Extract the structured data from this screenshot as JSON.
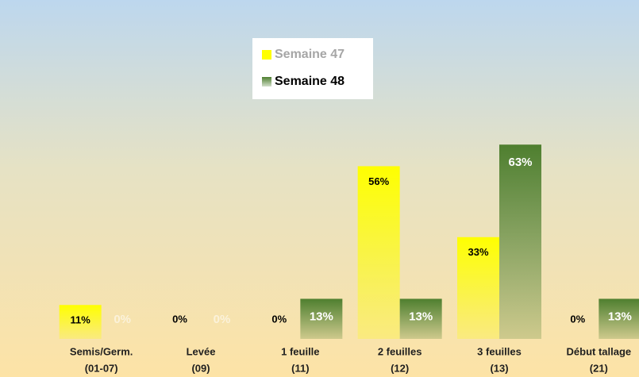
{
  "chart_data": {
    "type": "bar",
    "categories": [
      [
        "Semis/Germ.",
        "(01-07)"
      ],
      [
        "Levée",
        "(09)"
      ],
      [
        "1 feuille",
        "(11)"
      ],
      [
        "2 feuilles",
        "(12)"
      ],
      [
        "3 feuilles",
        "(13)"
      ],
      [
        "Début tallage",
        "(21)"
      ]
    ],
    "series": [
      {
        "name": "Semaine 47",
        "color": "#ffff00",
        "values": [
          11,
          0,
          0,
          56,
          33,
          0
        ],
        "value_labels": [
          "11%",
          "0%",
          "0%",
          "56%",
          "33%",
          "0%"
        ]
      },
      {
        "name": "Semaine 48",
        "color": "#4f7f2f",
        "values": [
          0,
          0,
          13,
          13,
          63,
          13
        ],
        "value_labels": [
          "0%",
          "0%",
          "13%",
          "13%",
          "63%",
          "13%"
        ]
      }
    ],
    "ylim": [
      0,
      70
    ],
    "legend": "top-center"
  }
}
